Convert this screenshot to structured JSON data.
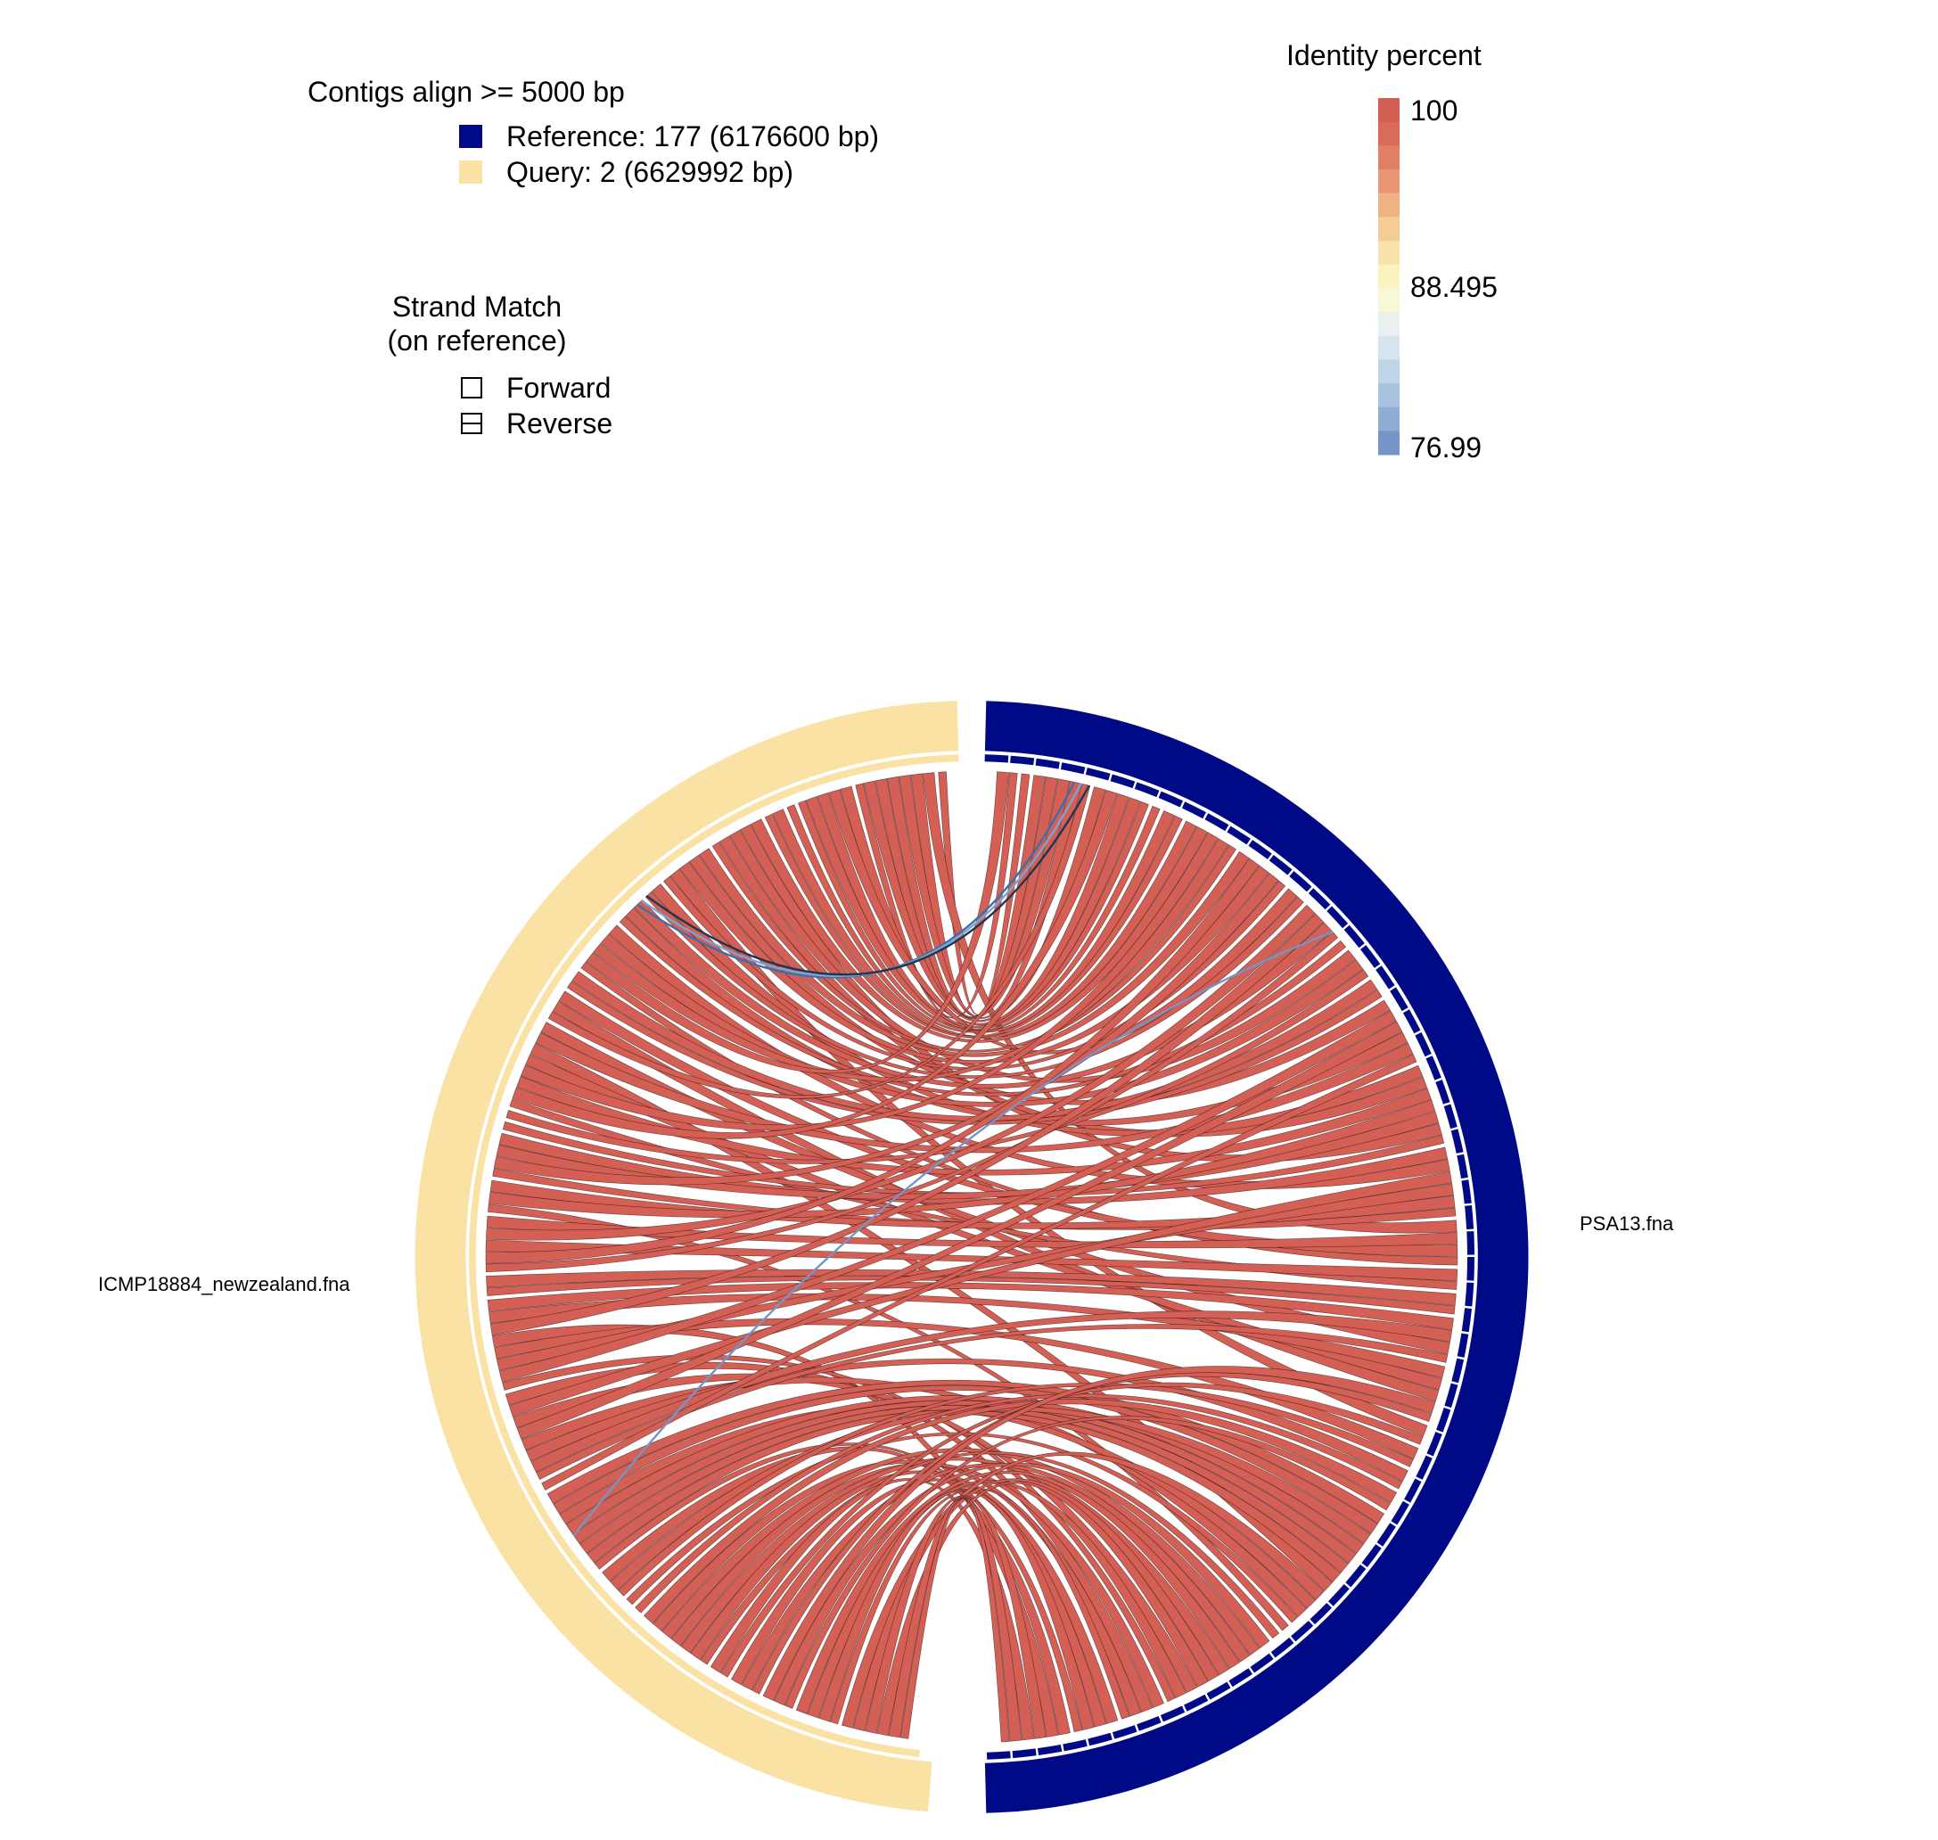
{
  "contig_legend": {
    "title": "Contigs align >= 5000 bp",
    "items": [
      {
        "label": "Reference: 177 (6176600 bp)",
        "color": "#000a86"
      },
      {
        "label": "Query: 2 (6629992 bp)",
        "color": "#f9e2a4"
      }
    ]
  },
  "strand_legend": {
    "title_line1": "Strand Match",
    "title_line2": "(on reference)",
    "items": [
      {
        "label": "Forward",
        "icon": "forward-strand-icon"
      },
      {
        "label": "Reverse",
        "icon": "reverse-strand-icon"
      }
    ]
  },
  "identity_scale": {
    "title": "Identity percent",
    "ticks": [
      "100",
      "88.495",
      "76.99"
    ],
    "min": 76.99,
    "max": 100,
    "colors_top_to_bottom": [
      "#d45f55",
      "#da6b5b",
      "#e07e66",
      "#e89673",
      "#efb285",
      "#f4cc97",
      "#f8e2ab",
      "#fbf3bf",
      "#f7f8d6",
      "#eaf0f0",
      "#d6e4ef",
      "#c0d4e8",
      "#a9c2df",
      "#8fadd4",
      "#7595c6"
    ]
  },
  "diagram": {
    "reference_label": "PSA13.fna",
    "query_label": "ICMP18884_newzealand.fna",
    "reference_color": "#000a86",
    "query_color": "#f9e2a4",
    "link_color": "#d45f55",
    "link_stroke": "#000000"
  }
}
